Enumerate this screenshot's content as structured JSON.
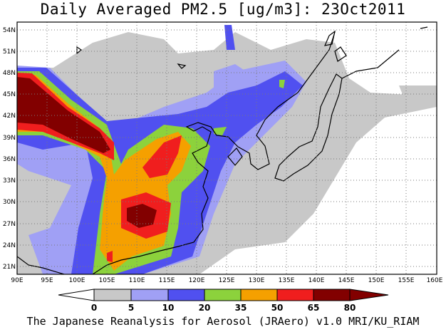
{
  "title": "Daily Averaged PM2.5 [ug/m3]: 23Oct2011",
  "credit": "The Japanese Reanalysis for Aerosol (JRAero) v1.0 MRI/KU_RIAM",
  "map": {
    "lat_labels": [
      "54N",
      "51N",
      "48N",
      "45N",
      "42N",
      "39N",
      "36N",
      "33N",
      "30N",
      "27N",
      "24N",
      "21N"
    ],
    "lon_labels": [
      "90E",
      "95E",
      "100E",
      "105E",
      "110E",
      "115E",
      "120E",
      "125E",
      "130E",
      "135E",
      "140E",
      "145E",
      "150E",
      "155E",
      "160E"
    ]
  },
  "colorbar": {
    "levels": [
      "0",
      "5",
      "10",
      "20",
      "35",
      "50",
      "65",
      "80"
    ],
    "colors": [
      "#ffffff",
      "#c8c8c8",
      "#a0a0f5",
      "#5050f0",
      "#8cd23c",
      "#f5a000",
      "#f01e1e",
      "#820000"
    ]
  }
}
